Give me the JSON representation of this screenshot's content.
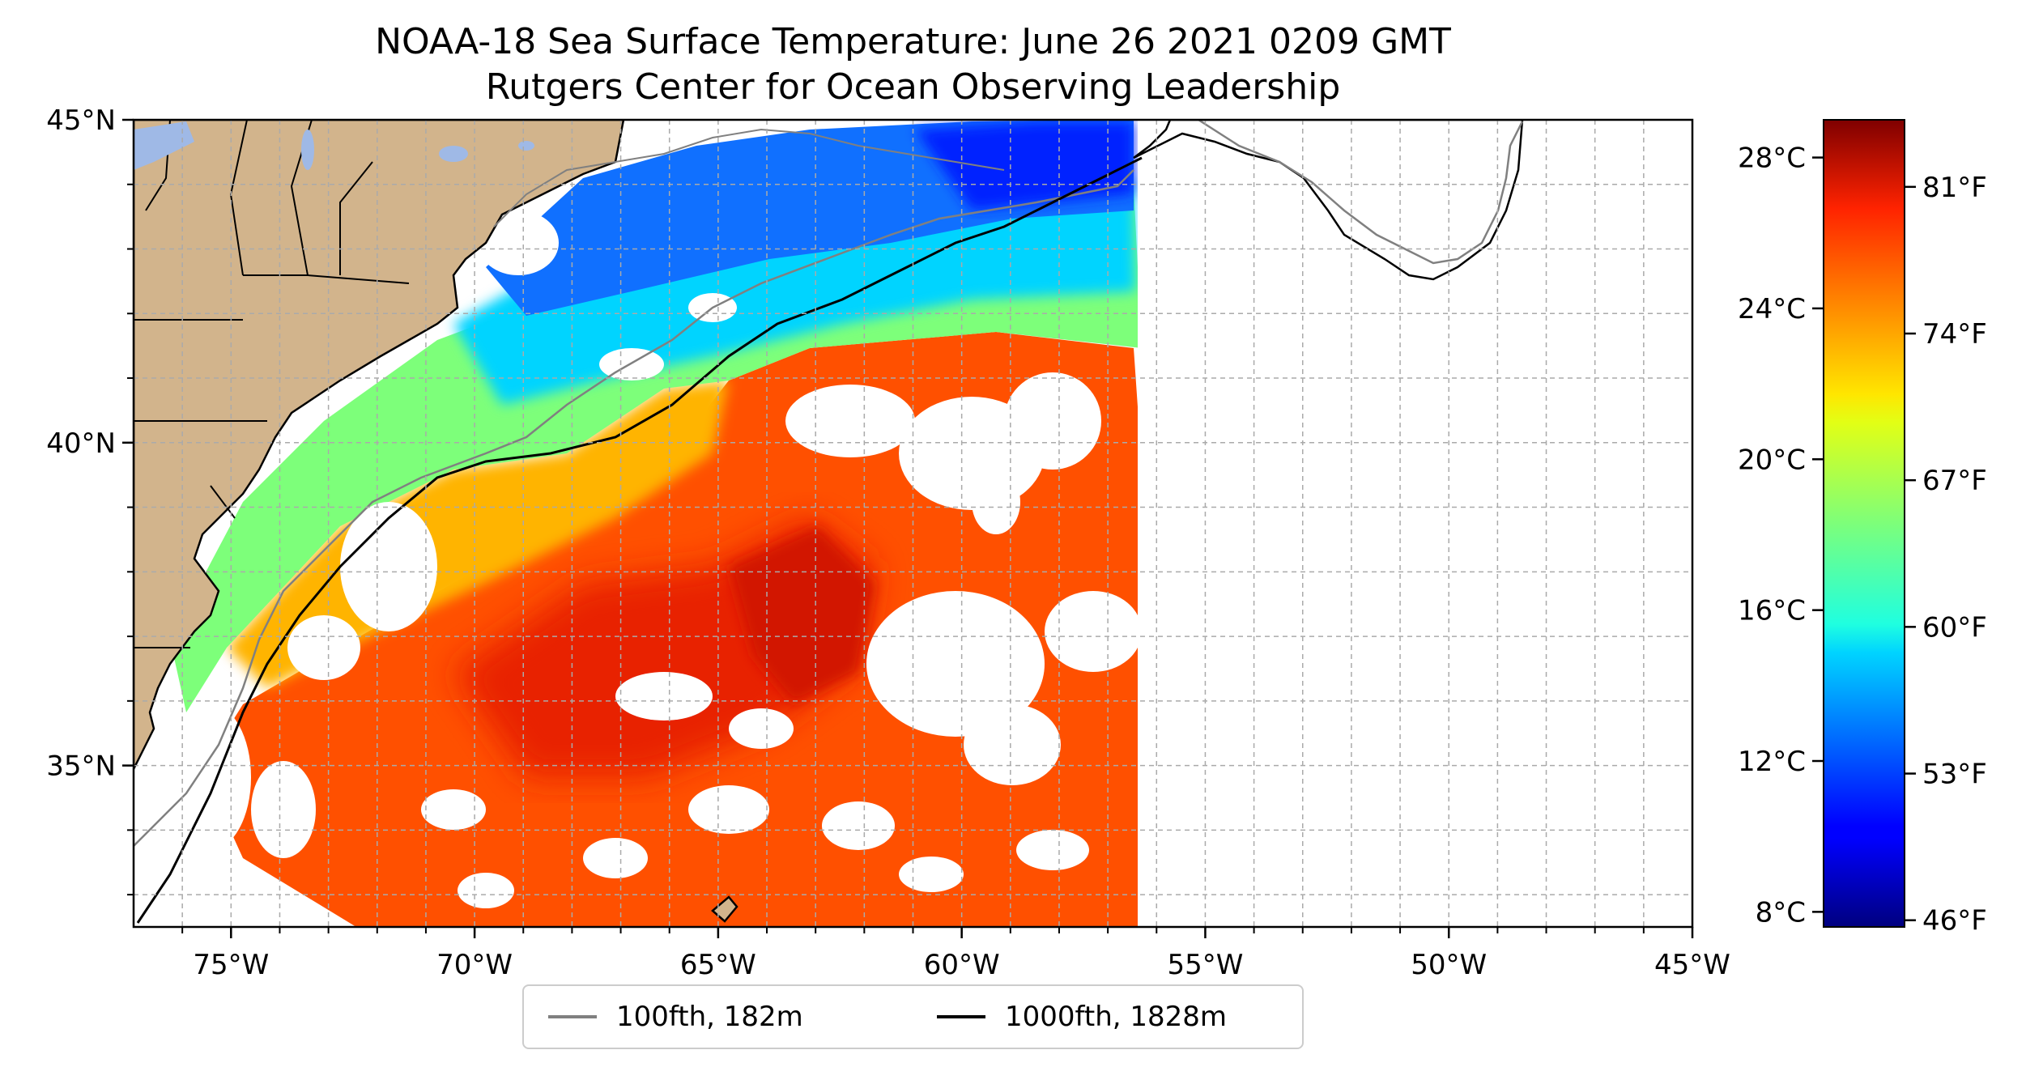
{
  "title": {
    "line1": "NOAA-18 Sea Surface Temperature: June 26 2021 0209 GMT",
    "line2": "Rutgers Center for Ocean Observing Leadership"
  },
  "map": {
    "lon_range": [
      -77,
      -45
    ],
    "lat_range": [
      32.5,
      45
    ],
    "x_ticks": [
      {
        "value": -75,
        "label": "75°W"
      },
      {
        "value": -70,
        "label": "70°W"
      },
      {
        "value": -65,
        "label": "65°W"
      },
      {
        "value": -60,
        "label": "60°W"
      },
      {
        "value": -55,
        "label": "55°W"
      },
      {
        "value": -50,
        "label": "50°W"
      },
      {
        "value": -45,
        "label": "45°W"
      }
    ],
    "y_ticks": [
      {
        "value": 45,
        "label": "45°N"
      },
      {
        "value": 40,
        "label": "40°N"
      },
      {
        "value": 35,
        "label": "35°N"
      }
    ],
    "grid": "dashed, every 1°",
    "colors": {
      "land": "#d2b48c",
      "lakes": "#9fb9e6",
      "no_data": "#ffffff",
      "isobath_100fth": "#808080",
      "isobath_1000fth": "#000000"
    }
  },
  "colorbar": {
    "colormap": "jet",
    "range_c": [
      7.6,
      29
    ],
    "celsius_ticks": [
      {
        "value": 28,
        "label": "28°C"
      },
      {
        "value": 24,
        "label": "24°C"
      },
      {
        "value": 20,
        "label": "20°C"
      },
      {
        "value": 16,
        "label": "16°C"
      },
      {
        "value": 12,
        "label": "12°C"
      },
      {
        "value": 8,
        "label": "8°C"
      }
    ],
    "fahrenheit_ticks": [
      {
        "value": 81,
        "label": "81°F"
      },
      {
        "value": 74,
        "label": "74°F"
      },
      {
        "value": 67,
        "label": "67°F"
      },
      {
        "value": 60,
        "label": "60°F"
      },
      {
        "value": 53,
        "label": "53°F"
      },
      {
        "value": 46,
        "label": "46°F"
      }
    ]
  },
  "legend": {
    "items": [
      {
        "label": "100fth, 182m",
        "color": "#808080"
      },
      {
        "label": "1000fth, 1828m",
        "color": "#000000"
      }
    ]
  }
}
